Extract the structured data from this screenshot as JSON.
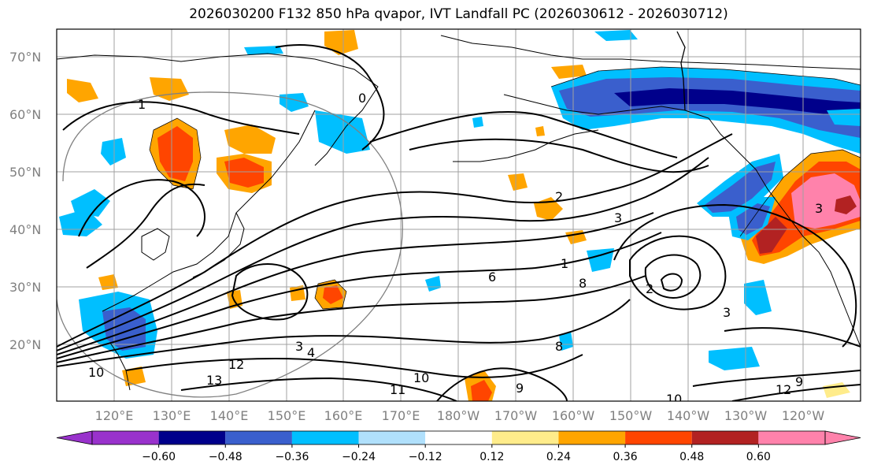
{
  "title": "2026030200 F132 850 hPa qvapor, IVT Landfall PC (2026030612 - 2026030712)",
  "lat_labels": [
    "70°N",
    "60°N",
    "50°N",
    "40°N",
    "30°N",
    "20°N"
  ],
  "lon_labels": [
    "120°E",
    "130°E",
    "140°E",
    "150°E",
    "160°E",
    "170°E",
    "180°W",
    "170°W",
    "160°W",
    "150°W",
    "140°W",
    "130°W",
    "120°W"
  ],
  "colorbar": {
    "colors": [
      "#9932cc",
      "#00008b",
      "#3a5fcd",
      "#00bfff",
      "#b0e0fc",
      "#ffffff",
      "#ffec8b",
      "#ffa500",
      "#ff4500",
      "#b22222",
      "#ff82ab"
    ],
    "tick_labels": [
      "−0.60",
      "−0.48",
      "−0.36",
      "−0.24",
      "−0.12",
      "0.12",
      "0.24",
      "0.36",
      "0.48",
      "0.60"
    ]
  },
  "contour_labels": [
    "0",
    "1",
    "1",
    "2",
    "2",
    "3",
    "3",
    "3",
    "6",
    "8",
    "10",
    "10",
    "11",
    "12",
    "13",
    "9",
    "12",
    "9",
    "10",
    "4",
    "3",
    "8"
  ],
  "shading_classes": {
    "blue_colors": [
      "#00bfff",
      "#3a5fcd",
      "#00008b"
    ],
    "warm_colors": [
      "#ffec8b",
      "#ffa500",
      "#ff4500",
      "#b22222",
      "#ff82ab"
    ]
  }
}
